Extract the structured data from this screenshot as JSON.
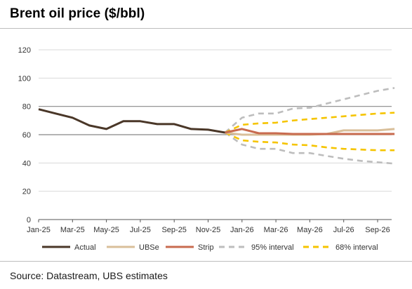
{
  "title": "Brent oil price ($/bbl)",
  "source": "Source: Datastream, UBS estimates",
  "chart_data": {
    "type": "line",
    "ylim": [
      0,
      120
    ],
    "yticks": [
      "0",
      "20",
      "40",
      "60",
      "80",
      "100",
      "120"
    ],
    "xticks": [
      "Jan-25",
      "Mar-25",
      "May-25",
      "Jul-25",
      "Sep-25",
      "Nov-25",
      "Jan-26",
      "Mar-26",
      "May-26",
      "Jul-26",
      "Sep-26"
    ],
    "series": [
      {
        "name": "Actual",
        "color": "#4a3728",
        "style": "solid",
        "points": [
          [
            "2025-01-01",
            78
          ],
          [
            "2025-02-01",
            75
          ],
          [
            "2025-03-01",
            72
          ],
          [
            "2025-04-01",
            66.5
          ],
          [
            "2025-05-01",
            64
          ],
          [
            "2025-06-01",
            69.5
          ],
          [
            "2025-07-01",
            69.5
          ],
          [
            "2025-08-01",
            67.5
          ],
          [
            "2025-09-01",
            67.5
          ],
          [
            "2025-10-01",
            64
          ],
          [
            "2025-11-01",
            63.5
          ],
          [
            "2025-12-01",
            61.5
          ]
        ]
      },
      {
        "name": "UBSe",
        "color": "#d9bf9a",
        "style": "solid",
        "points": [
          [
            "2025-12-01",
            61.5
          ],
          [
            "2026-01-01",
            60
          ],
          [
            "2026-02-01",
            60
          ],
          [
            "2026-03-01",
            60
          ],
          [
            "2026-04-01",
            60
          ],
          [
            "2026-05-01",
            60
          ],
          [
            "2026-06-01",
            60.5
          ],
          [
            "2026-07-01",
            63
          ],
          [
            "2026-08-01",
            63
          ],
          [
            "2026-09-01",
            63
          ],
          [
            "2026-10-01",
            64
          ]
        ]
      },
      {
        "name": "Strip",
        "color": "#c86b4f",
        "style": "solid",
        "points": [
          [
            "2025-12-01",
            61.5
          ],
          [
            "2026-01-01",
            64
          ],
          [
            "2026-02-01",
            61
          ],
          [
            "2026-03-01",
            61
          ],
          [
            "2026-04-01",
            60.5
          ],
          [
            "2026-05-01",
            60.5
          ],
          [
            "2026-06-01",
            60.5
          ],
          [
            "2026-07-01",
            60.5
          ],
          [
            "2026-08-01",
            60.5
          ],
          [
            "2026-09-01",
            60.5
          ],
          [
            "2026-10-01",
            60.5
          ]
        ]
      },
      {
        "name": "95% interval",
        "color": "#bdbdbd",
        "style": "dashed",
        "points": [
          [
            "2025-12-01",
            61.5
          ],
          [
            "2026-01-01",
            72
          ],
          [
            "2026-02-01",
            75
          ],
          [
            "2026-03-01",
            75
          ],
          [
            "2026-04-01",
            78.5
          ],
          [
            "2026-05-01",
            79
          ],
          [
            "2026-06-01",
            82
          ],
          [
            "2026-07-01",
            85
          ],
          [
            "2026-08-01",
            88
          ],
          [
            "2026-09-01",
            91
          ],
          [
            "2026-10-01",
            93
          ]
        ],
        "lower": [
          [
            "2025-12-01",
            61.5
          ],
          [
            "2026-01-01",
            53
          ],
          [
            "2026-02-01",
            50
          ],
          [
            "2026-03-01",
            50
          ],
          [
            "2026-04-01",
            47
          ],
          [
            "2026-05-01",
            47
          ],
          [
            "2026-06-01",
            45
          ],
          [
            "2026-07-01",
            43
          ],
          [
            "2026-08-01",
            41.5
          ],
          [
            "2026-09-01",
            40.5
          ],
          [
            "2026-10-01",
            39.5
          ]
        ]
      },
      {
        "name": "68% interval",
        "color": "#f5c400",
        "style": "dashed",
        "points": [
          [
            "2025-12-01",
            61.5
          ],
          [
            "2026-01-01",
            67
          ],
          [
            "2026-02-01",
            68
          ],
          [
            "2026-03-01",
            68.5
          ],
          [
            "2026-04-01",
            70
          ],
          [
            "2026-05-01",
            71
          ],
          [
            "2026-06-01",
            72
          ],
          [
            "2026-07-01",
            73
          ],
          [
            "2026-08-01",
            74
          ],
          [
            "2026-09-01",
            75
          ],
          [
            "2026-10-01",
            75.5
          ]
        ],
        "lower": [
          [
            "2025-12-01",
            61.5
          ],
          [
            "2026-01-01",
            56
          ],
          [
            "2026-02-01",
            55
          ],
          [
            "2026-03-01",
            54.5
          ],
          [
            "2026-04-01",
            53
          ],
          [
            "2026-05-01",
            52.5
          ],
          [
            "2026-06-01",
            51
          ],
          [
            "2026-07-01",
            50
          ],
          [
            "2026-08-01",
            49.5
          ],
          [
            "2026-09-01",
            49
          ],
          [
            "2026-10-01",
            49
          ]
        ]
      }
    ],
    "legend_position": "bottom",
    "grid": "horizontal"
  }
}
